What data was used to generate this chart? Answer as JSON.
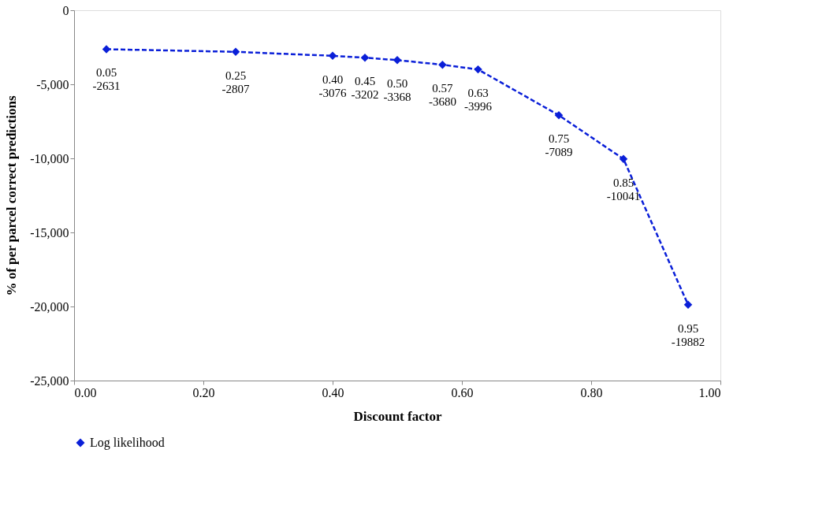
{
  "chart_data": {
    "type": "line",
    "xlabel": "Discount factor",
    "ylabel": "% of per parcel  correct predictions",
    "x": [
      0.05,
      0.25,
      0.4,
      0.45,
      0.5,
      0.57,
      0.625,
      0.75,
      0.85,
      0.95
    ],
    "series": [
      {
        "name": "Log likelihood",
        "color": "#0a1fd8",
        "values": [
          -2631,
          -2807,
          -3076,
          -3202,
          -3368,
          -3680,
          -3996,
          -7089,
          -10041,
          -19882
        ],
        "value_labels": [
          "0.05\n-2631",
          "0.25\n-2807",
          "0.40\n-3076",
          "0.45\n-3202",
          "0.50\n-3368",
          "0.57\n-3680",
          "0.63\n-3996",
          "0.75\n-7089",
          "0.85\n-10041",
          "0.95\n-19882"
        ]
      }
    ],
    "xlim": [
      0,
      1
    ],
    "xticks": [
      {
        "value": 0,
        "label": "0.00"
      },
      {
        "value": 0.2,
        "label": "0.20"
      },
      {
        "value": 0.4,
        "label": "0.40"
      },
      {
        "value": 0.6,
        "label": "0.60"
      },
      {
        "value": 0.8,
        "label": "0.80"
      },
      {
        "value": 1.0,
        "label": "1.00"
      }
    ],
    "ylim": [
      -25000,
      0
    ],
    "yticks": [
      {
        "value": -25000,
        "label": "-25,000"
      },
      {
        "value": -20000,
        "label": "-20,000"
      },
      {
        "value": -15000,
        "label": "-15,000"
      },
      {
        "value": -10000,
        "label": "-10,000"
      },
      {
        "value": -5000,
        "label": "-5,000"
      },
      0
    ],
    "grid": false,
    "legend": "bottom",
    "marker": "diamond",
    "line_style": "dashed"
  }
}
